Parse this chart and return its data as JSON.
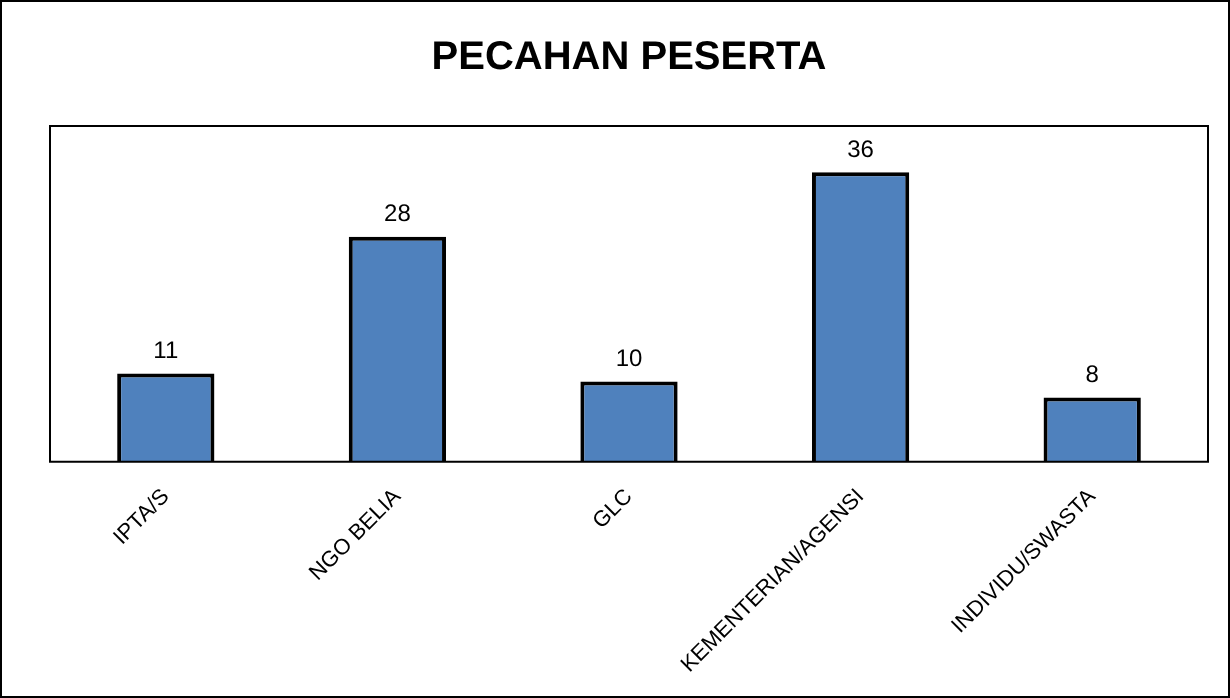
{
  "chart_data": {
    "type": "bar",
    "title": "PECAHAN PESERTA",
    "categories": [
      "IPTA/S",
      "NGO BELIA",
      "GLC",
      "KEMENTERIAN/AGENSI",
      "INDIVIDU/SWASTA"
    ],
    "values": [
      11,
      28,
      10,
      36,
      8
    ],
    "color": "#4f81bd",
    "data_labels": true,
    "grid": false,
    "legend": false,
    "tick_labels": "x"
  }
}
